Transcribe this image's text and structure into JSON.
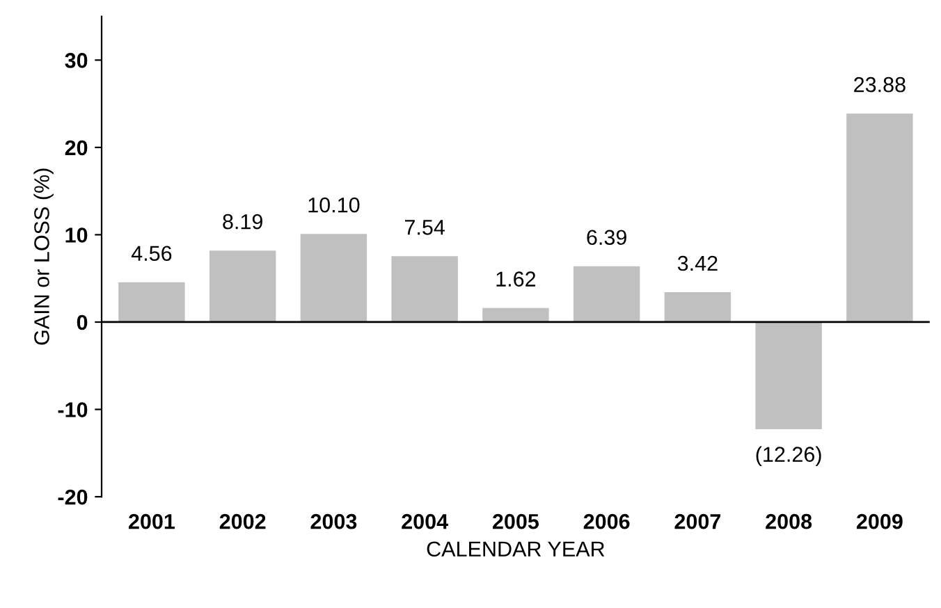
{
  "chart_data": {
    "type": "bar",
    "xlabel": "CALENDAR YEAR",
    "ylabel": "GAIN or LOSS (%)",
    "categories": [
      "2001",
      "2002",
      "2003",
      "2004",
      "2005",
      "2006",
      "2007",
      "2008",
      "2009"
    ],
    "values": [
      4.56,
      8.19,
      10.1,
      7.54,
      1.62,
      6.39,
      3.42,
      -12.26,
      23.88
    ],
    "value_labels": [
      "4.56",
      "8.19",
      "10.10",
      "7.54",
      "1.62",
      "6.39",
      "3.42",
      "(12.26)",
      "23.88"
    ],
    "color": "#c0c0c0",
    "ylim": [
      -20,
      35
    ],
    "yticks": [
      -20,
      -10,
      0,
      10,
      20,
      30
    ],
    "ref_lines": [
      {
        "axis": "y",
        "value": 0,
        "color": "#000000"
      }
    ],
    "legend": false
  }
}
